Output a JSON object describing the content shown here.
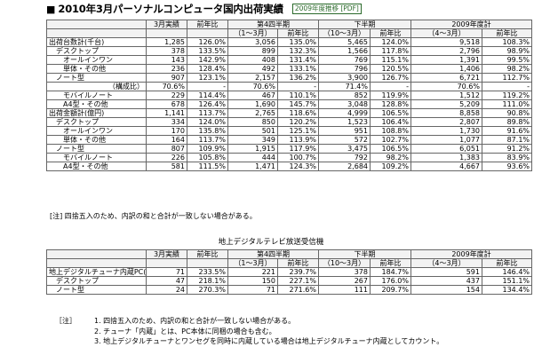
{
  "title": "2010年3月パーソナルコンピュータ国内出荷実績",
  "pdf_link": "2009年度推移 [PDF]",
  "table1": {
    "header1": [
      "",
      "3月実績",
      "前年比",
      "第4四半期",
      "",
      "下半期",
      "",
      "2009年度計",
      ""
    ],
    "header2": [
      "",
      "",
      "",
      "（1～3月）",
      "前年比",
      "（10～3月）",
      "前年比",
      "（4～3月）",
      "前年比"
    ],
    "rows": [
      [
        "出荷台数計(千台)",
        "1,285",
        "126.0%",
        "3,056",
        "135.0%",
        "5,465",
        "124.0%",
        "9,518",
        "108.3%"
      ],
      [
        "デスクトップ",
        "378",
        "133.5%",
        "899",
        "132.3%",
        "1,566",
        "117.8%",
        "2,796",
        "98.9%"
      ],
      [
        "オールインワン",
        "143",
        "142.9%",
        "408",
        "131.4%",
        "769",
        "115.1%",
        "1,391",
        "99.5%"
      ],
      [
        "単体・その他",
        "236",
        "128.4%",
        "492",
        "133.1%",
        "796",
        "120.5%",
        "1,406",
        "98.2%"
      ],
      [
        "ノート型",
        "907",
        "123.1%",
        "2,157",
        "136.2%",
        "3,900",
        "126.7%",
        "6,721",
        "112.7%"
      ],
      [
        "（構成比）",
        "70.6%",
        "-",
        "70.6%",
        "-",
        "71.4%",
        "-",
        "70.6%",
        "-"
      ],
      [
        "モバイルノート",
        "229",
        "114.4%",
        "467",
        "110.1%",
        "852",
        "119.9%",
        "1,512",
        "119.2%"
      ],
      [
        "A4型・その他",
        "678",
        "126.4%",
        "1,690",
        "145.7%",
        "3,048",
        "128.8%",
        "5,209",
        "111.0%"
      ],
      [
        "出荷金額計(億円)",
        "1,141",
        "113.7%",
        "2,765",
        "118.6%",
        "4,999",
        "106.5%",
        "8,858",
        "90.8%"
      ],
      [
        "デスクトップ",
        "334",
        "124.0%",
        "850",
        "120.2%",
        "1,523",
        "106.4%",
        "2,807",
        "89.8%"
      ],
      [
        "オールインワン",
        "170",
        "135.8%",
        "501",
        "125.1%",
        "951",
        "108.8%",
        "1,730",
        "91.6%"
      ],
      [
        "単体・その他",
        "164",
        "113.7%",
        "349",
        "113.9%",
        "572",
        "102.7%",
        "1,077",
        "87.1%"
      ],
      [
        "ノート型",
        "807",
        "109.9%",
        "1,915",
        "117.9%",
        "3,475",
        "106.5%",
        "6,051",
        "91.2%"
      ],
      [
        "モバイルノート",
        "226",
        "105.8%",
        "444",
        "100.7%",
        "792",
        "98.2%",
        "1,383",
        "83.9%"
      ],
      [
        "A4型・その他",
        "581",
        "111.5%",
        "1,471",
        "124.3%",
        "2,684",
        "109.2%",
        "4,667",
        "93.6%"
      ]
    ],
    "note": "[注] 四捨五入のため、内訳の和と合計が一致しない場合がある。"
  },
  "table2": {
    "subtitle": "地上デジタルテレビ放送受信機",
    "header1": [
      "",
      "3月実績",
      "前年比",
      "第4四半期",
      "",
      "下半期",
      "",
      "2009年度計",
      ""
    ],
    "header2": [
      "",
      "",
      "",
      "（1～3月）",
      "前年比",
      "（10～3月）",
      "前年比",
      "（4～3月）",
      "前年比"
    ],
    "rows": [
      [
        "地上デジタルチューナ内蔵PC(千台)",
        "71",
        "233.5%",
        "221",
        "239.7%",
        "378",
        "184.7%",
        "591",
        "146.4%"
      ],
      [
        "デスクトップ",
        "47",
        "218.1%",
        "150",
        "227.1%",
        "267",
        "176.0%",
        "437",
        "151.1%"
      ],
      [
        "ノート型",
        "24",
        "270.3%",
        "71",
        "271.6%",
        "111",
        "209.7%",
        "154",
        "134.4%"
      ]
    ]
  },
  "notes": {
    "label": "［注］",
    "items": [
      "1. 四捨五入のため、内訳の和と合計が一致しない場合がある。",
      "2. チューナ「内蔵」とは、PC本体に同梱の場合も含む。",
      "3. 地上デジタルチューナとワンセグを同時に内蔵している場合は地上デジタルチューナ内蔵としてカウント。"
    ]
  }
}
